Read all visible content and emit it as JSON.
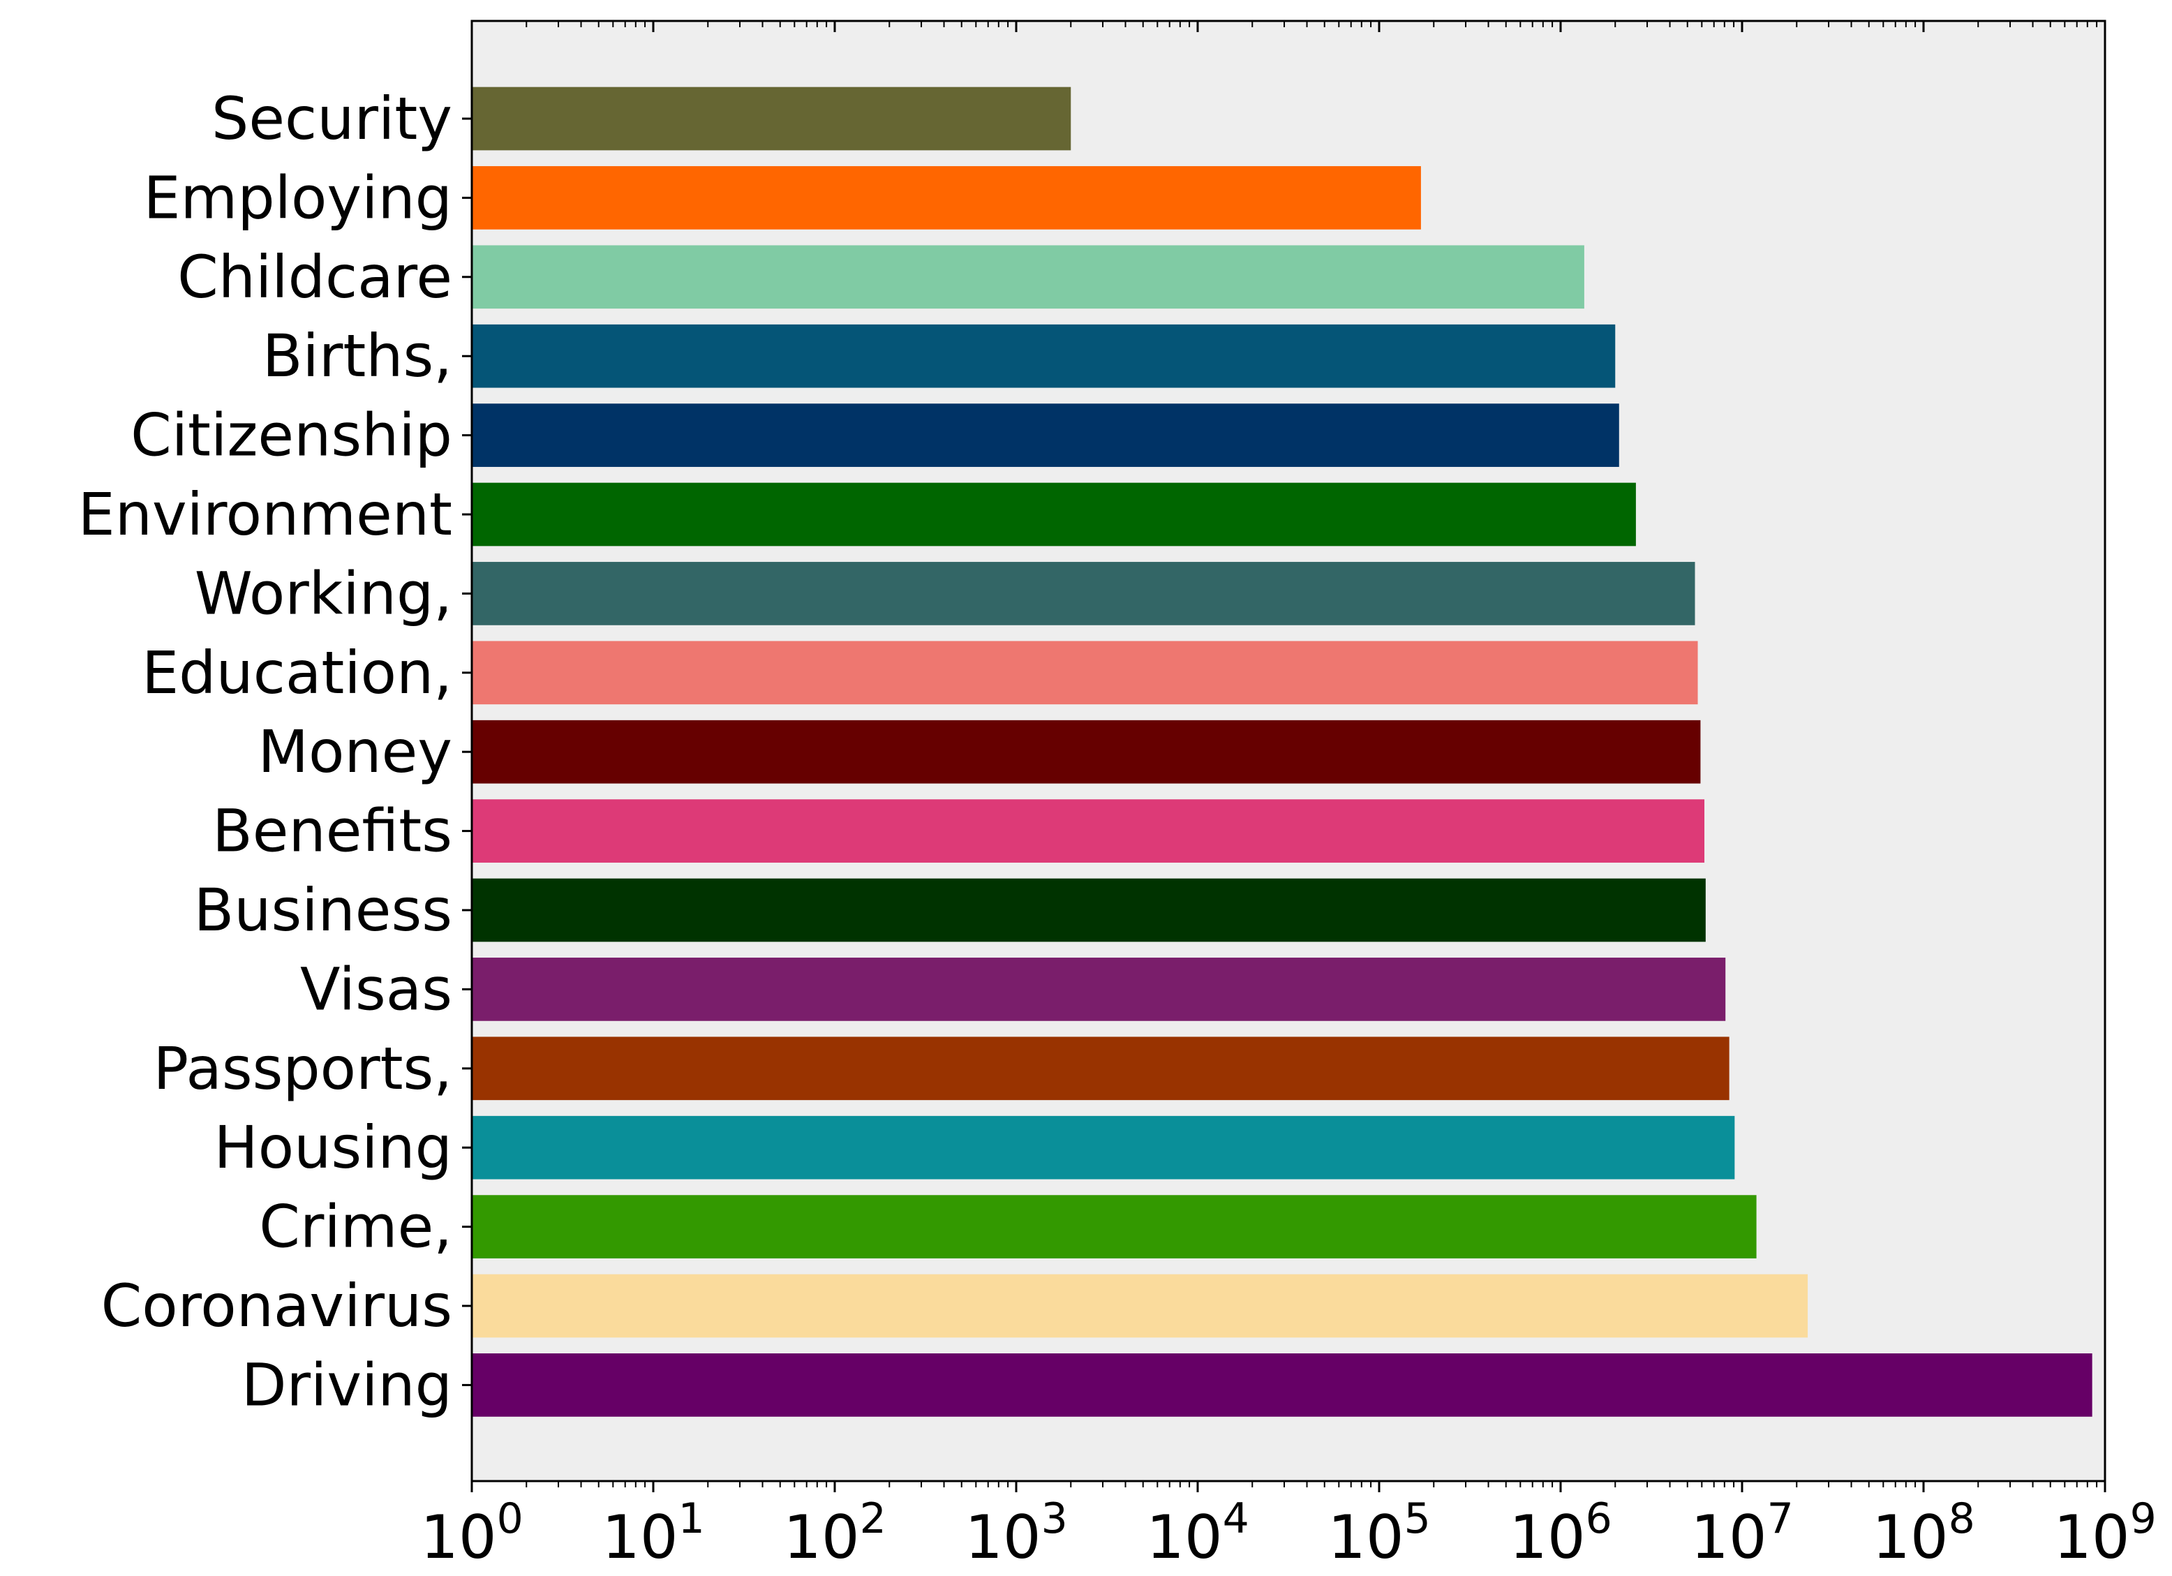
{
  "chart_data": {
    "type": "bar",
    "orientation": "horizontal",
    "title": "",
    "xlabel": "",
    "ylabel": "",
    "x_scale": "log",
    "xlim": [
      1,
      1000000000
    ],
    "x_tick_labels": [
      {
        "base": "10",
        "exp": "0"
      },
      {
        "base": "10",
        "exp": "1"
      },
      {
        "base": "10",
        "exp": "2"
      },
      {
        "base": "10",
        "exp": "3"
      },
      {
        "base": "10",
        "exp": "4"
      },
      {
        "base": "10",
        "exp": "5"
      },
      {
        "base": "10",
        "exp": "6"
      },
      {
        "base": "10",
        "exp": "7"
      },
      {
        "base": "10",
        "exp": "8"
      },
      {
        "base": "10",
        "exp": "9"
      }
    ],
    "grid": false,
    "background_color": "#eeeeee",
    "categories": [
      "Security",
      "Employing",
      "Childcare",
      "Births,",
      "Citizenship",
      "Environment",
      "Working,",
      "Education,",
      "Money",
      "Benefits",
      "Business",
      "Visas",
      "Passports,",
      "Housing",
      "Crime,",
      "Coronavirus",
      "Driving"
    ],
    "values": [
      2000,
      170000,
      1350000,
      2000000,
      2100000,
      2600000,
      5500000,
      5700000,
      5900000,
      6200000,
      6300000,
      8100000,
      8500000,
      9100000,
      12000000,
      23000000,
      850000000
    ],
    "colors": [
      "#666633",
      "#ff6600",
      "#80cba4",
      "#055577",
      "#003366",
      "#006600",
      "#336666",
      "#ee7770",
      "#660000",
      "#dd3a77",
      "#003300",
      "#7a1e6b",
      "#993300",
      "#0a8f99",
      "#339900",
      "#fadb9c",
      "#660066"
    ]
  }
}
